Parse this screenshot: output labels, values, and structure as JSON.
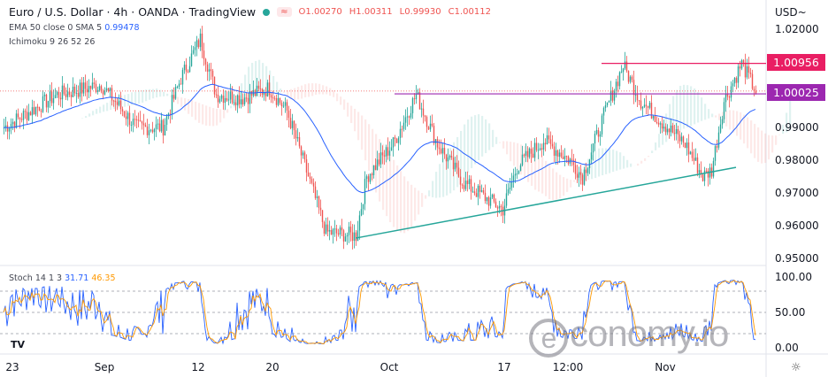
{
  "header": {
    "title": "Euro / U.S. Dollar · 4h · OANDA · TradingView",
    "open": "O1.00270",
    "high": "H1.00311",
    "low": "L0.99930",
    "close": "C1.00112",
    "badge": "≈"
  },
  "indicators": {
    "ema": "EMA 50 close 0 SMA 5",
    "ema_value": "0.99478",
    "ichimoku": "Ichimoku 9 26 52 26",
    "stoch": "Stoch 14 1 3",
    "stoch_k": "31.71",
    "stoch_d": "46.35"
  },
  "currency": "USD~",
  "price_tags": {
    "red": "1.00956",
    "purple": "1.00025"
  },
  "watermark": "ieconomy.io",
  "colors": {
    "up": "#26a69a",
    "down": "#ef5350",
    "ema": "#2962ff",
    "red_line": "#e91e63",
    "purple_line": "#9c27b0",
    "trend": "#26a69a",
    "stoch_k": "#2962ff",
    "stoch_d": "#ff9800"
  },
  "chart_data": {
    "type": "candlestick",
    "title": "Euro / U.S. Dollar · 4h · OANDA",
    "price_ticks": [
      "1.02000",
      "1.00956",
      "1.00025",
      "0.99000",
      "0.98000",
      "0.97000",
      "0.96000",
      "0.95000"
    ],
    "price_range": [
      0.9435,
      1.0254
    ],
    "stoch_ticks": [
      "100.00",
      "50.00",
      "0.00"
    ],
    "x_ticks": [
      {
        "label": "23",
        "bar": 5
      },
      {
        "label": "Sep",
        "bar": 57
      },
      {
        "label": "12",
        "bar": 110
      },
      {
        "label": "20",
        "bar": 152
      },
      {
        "label": "Oct",
        "bar": 218
      },
      {
        "label": "17",
        "bar": 283
      },
      {
        "label": "12:00",
        "bar": 319
      },
      {
        "label": "Nov",
        "bar": 374
      }
    ],
    "close_keypoints": [
      [
        0,
        0.99
      ],
      [
        15,
        0.995
      ],
      [
        30,
        1.0
      ],
      [
        55,
        1.003
      ],
      [
        75,
        0.99
      ],
      [
        90,
        0.99
      ],
      [
        100,
        1.005
      ],
      [
        111,
        1.017
      ],
      [
        120,
        1.0
      ],
      [
        135,
        0.999
      ],
      [
        150,
        1.002
      ],
      [
        160,
        0.995
      ],
      [
        172,
        0.975
      ],
      [
        182,
        0.958
      ],
      [
        199,
        0.957
      ],
      [
        205,
        0.975
      ],
      [
        220,
        0.985
      ],
      [
        233,
        1.0
      ],
      [
        245,
        0.985
      ],
      [
        260,
        0.973
      ],
      [
        282,
        0.965
      ],
      [
        290,
        0.978
      ],
      [
        305,
        0.986
      ],
      [
        320,
        0.98
      ],
      [
        327,
        0.975
      ],
      [
        340,
        0.995
      ],
      [
        350,
        1.009
      ],
      [
        360,
        0.998
      ],
      [
        375,
        0.99
      ],
      [
        385,
        0.985
      ],
      [
        395,
        0.975
      ],
      [
        400,
        0.977
      ],
      [
        407,
        0.998
      ],
      [
        417,
        1.0095
      ],
      [
        425,
        1.001
      ]
    ],
    "horizontal_lines": [
      {
        "price": 1.00956,
        "from_bar": 338
      },
      {
        "price": 1.00025,
        "from_bar": 221
      }
    ],
    "trendline": [
      [
        199,
        0.9562
      ],
      [
        414,
        0.9778
      ]
    ],
    "stoch_levels": [
      80,
      50,
      20
    ]
  }
}
